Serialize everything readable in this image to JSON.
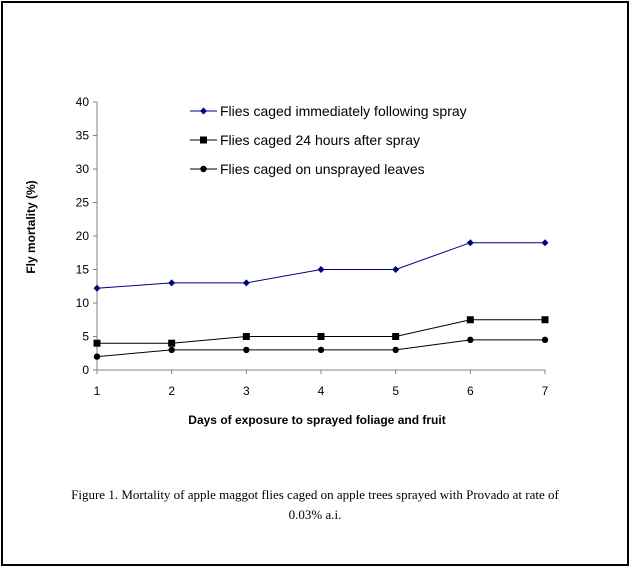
{
  "chart_data": {
    "type": "line",
    "x": [
      1,
      2,
      3,
      4,
      5,
      6,
      7
    ],
    "xlim": [
      1,
      7
    ],
    "ylim": [
      0,
      40
    ],
    "yticks": [
      0,
      5,
      10,
      15,
      20,
      25,
      30,
      35,
      40
    ],
    "xlabel": "Days of exposure to sprayed foliage and fruit",
    "ylabel": "Fly mortality (%)",
    "grid": false,
    "legend_position": "top",
    "series": [
      {
        "name": "Flies caged immediately following spray",
        "values": [
          12.2,
          13,
          13,
          15,
          15,
          19,
          19
        ],
        "color": "#000080",
        "marker": "diamond"
      },
      {
        "name": "Flies caged 24 hours after spray",
        "values": [
          4,
          4,
          5,
          5,
          5,
          7.5,
          7.5
        ],
        "color": "#000000",
        "marker": "square"
      },
      {
        "name": "Flies caged on unsprayed leaves",
        "values": [
          2,
          3,
          3,
          3,
          3,
          4.5,
          4.5
        ],
        "color": "#000000",
        "marker": "circle"
      }
    ]
  },
  "caption": "Figure 1. Mortality of apple maggot flies caged on apple trees sprayed with Provado at rate of 0.03% a.i."
}
